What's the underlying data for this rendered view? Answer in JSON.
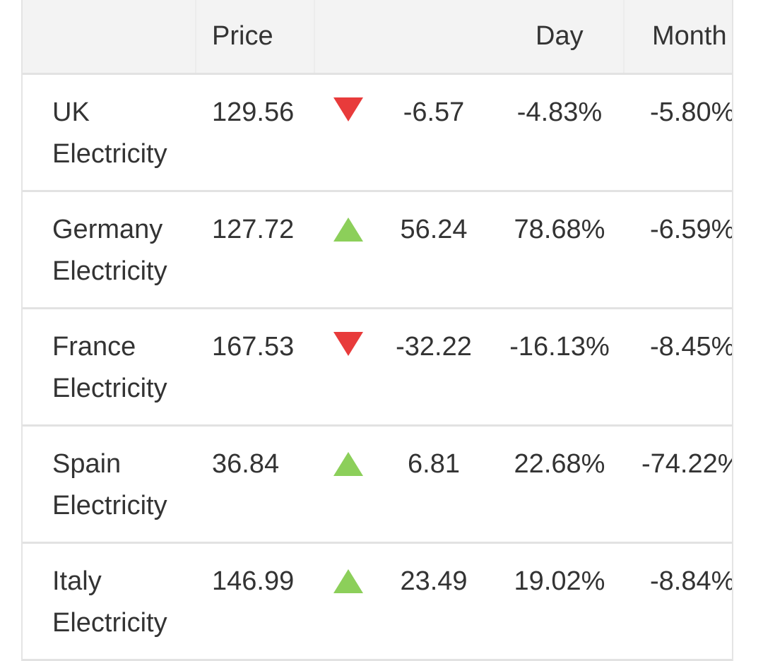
{
  "header": {
    "col_price": "Price",
    "col_day": "Day",
    "col_month": "Month"
  },
  "colors": {
    "up": "#8ccf5a",
    "down": "#e83b3b",
    "header_bg": "#f3f3f3",
    "border": "#e2e2e2"
  },
  "rows": [
    {
      "name_line1": "UK",
      "name_line2": "Electricity",
      "price": "129.56",
      "direction": "down",
      "change": "-6.57",
      "day": "-4.83%",
      "month": "-5.80%"
    },
    {
      "name_line1": "Germany",
      "name_line2": "Electricity",
      "price": "127.72",
      "direction": "up",
      "change": "56.24",
      "day": "78.68%",
      "month": "-6.59%"
    },
    {
      "name_line1": "France",
      "name_line2": "Electricity",
      "price": "167.53",
      "direction": "down",
      "change": "-32.22",
      "day": "-16.13%",
      "month": "-8.45%"
    },
    {
      "name_line1": "Spain",
      "name_line2": "Electricity",
      "price": "36.84",
      "direction": "up",
      "change": "6.81",
      "day": "22.68%",
      "month": "-74.22%"
    },
    {
      "name_line1": "Italy",
      "name_line2": "Electricity",
      "price": "146.99",
      "direction": "up",
      "change": "23.49",
      "day": "19.02%",
      "month": "-8.84%"
    }
  ]
}
